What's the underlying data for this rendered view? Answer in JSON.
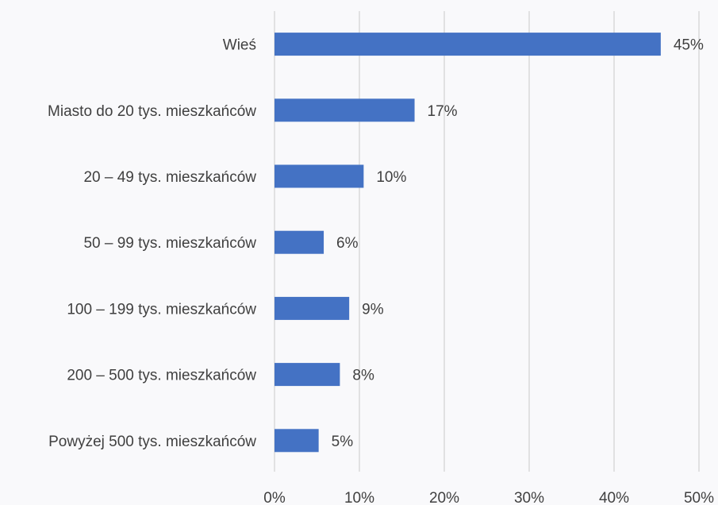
{
  "chart_data": {
    "type": "bar",
    "orientation": "horizontal",
    "categories": [
      "Wieś",
      "Miasto do 20 tys. mieszkańców",
      "20 – 49 tys. mieszkańców",
      "50 – 99 tys. mieszkańców",
      "100 – 199 tys. mieszkańców",
      "200 – 500 tys. mieszkańców",
      "Powyżej 500 tys. mieszkańców"
    ],
    "values": [
      45.5,
      16.5,
      10.5,
      5.8,
      8.8,
      7.7,
      5.2
    ],
    "value_labels": [
      "45%",
      "17%",
      "10%",
      "6%",
      "9%",
      "8%",
      "5%"
    ],
    "xlim": [
      0,
      50
    ],
    "x_ticks": [
      0,
      10,
      20,
      30,
      40,
      50
    ],
    "x_tick_labels": [
      "0%",
      "10%",
      "20%",
      "30%",
      "40%",
      "50%"
    ],
    "grid": true,
    "bar_color": "#4472c4"
  }
}
